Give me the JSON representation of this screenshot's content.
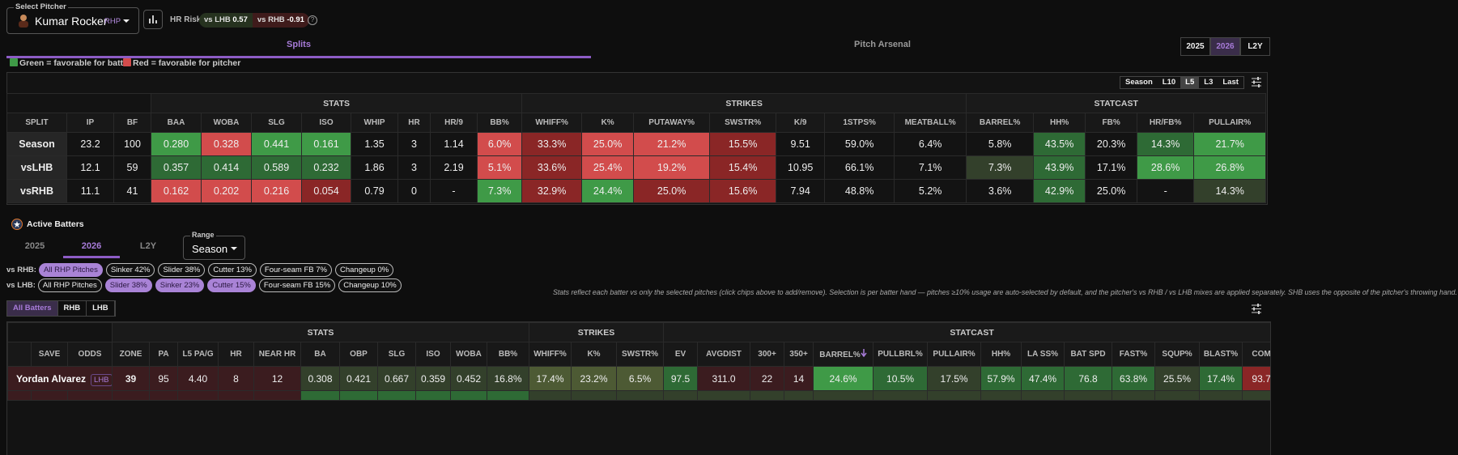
{
  "pitcher_select": {
    "label": "Select Pitcher",
    "name": "Kumar Rocker",
    "hand": "RHP"
  },
  "hr_risk": {
    "label": "HR Risk",
    "vs_lhb": {
      "label": "vs LHB",
      "value": "0.57"
    },
    "vs_rhb": {
      "label": "vs RHB",
      "value": "-0.91"
    },
    "help": "?"
  },
  "main_tabs": [
    {
      "text": "Splits",
      "selected": true
    },
    {
      "text": "Pitch Arsenal",
      "selected": false
    }
  ],
  "season_buttons": [
    {
      "text": "2025",
      "selected": false
    },
    {
      "text": "2026",
      "selected": true
    },
    {
      "text": "L2Y",
      "selected": false
    }
  ],
  "legend": [
    "Green = favorable for batter",
    "Red = favorable for pitcher"
  ],
  "range_buttons": [
    {
      "text": "Season",
      "selected": false
    },
    {
      "text": "L10",
      "selected": false
    },
    {
      "text": "L5",
      "selected": true
    },
    {
      "text": "L3",
      "selected": false
    },
    {
      "text": "Last",
      "selected": false
    }
  ],
  "splits_table": {
    "groups": [
      "STATS",
      "STRIKES",
      "STATCAST"
    ],
    "headers": [
      "SPLIT",
      "IP",
      "BF",
      "BAA",
      "WOBA",
      "SLG",
      "ISO",
      "WHIP",
      "HR",
      "HR/9",
      "BB%",
      "WHIFF%",
      "K%",
      "PUTAWAY%",
      "SWSTR%",
      "K/9",
      "1STPS%",
      "MEATBALL%",
      "BARREL%",
      "HH%",
      "FB%",
      "HR/FB%",
      "PULLAIR%"
    ],
    "rows": [
      [
        "Season",
        "23.2",
        "100",
        "0.280",
        "0.328",
        "0.441",
        "0.161",
        "1.35",
        "3",
        "1.14",
        "6.0%",
        "33.3%",
        "25.0%",
        "21.2%",
        "15.5%",
        "9.51",
        "59.0%",
        "6.4%",
        "5.8%",
        "43.5%",
        "20.3%",
        "14.3%",
        "21.7%"
      ],
      [
        "vsLHB",
        "12.1",
        "59",
        "0.357",
        "0.414",
        "0.589",
        "0.232",
        "1.86",
        "3",
        "2.19",
        "5.1%",
        "33.6%",
        "25.4%",
        "19.2%",
        "15.4%",
        "10.95",
        "66.1%",
        "7.1%",
        "7.3%",
        "43.9%",
        "17.1%",
        "28.6%",
        "26.8%"
      ],
      [
        "vsRHB",
        "11.1",
        "41",
        "0.162",
        "0.202",
        "0.216",
        "0.054",
        "0.79",
        "0",
        "-",
        "7.3%",
        "32.9%",
        "24.4%",
        "25.0%",
        "15.6%",
        "7.94",
        "48.8%",
        "5.2%",
        "3.6%",
        "42.9%",
        "25.0%",
        "-",
        "14.3%"
      ]
    ]
  },
  "active_batters": {
    "title": "Active Batters",
    "tabs": [
      {
        "text": "2025",
        "selected": false
      },
      {
        "text": "2026",
        "selected": true
      },
      {
        "text": "L2Y",
        "selected": false
      }
    ],
    "range": {
      "label": "Range",
      "value": "Season"
    },
    "rhb_chips": {
      "label": "vs RHB:",
      "items": [
        {
          "text": "All RHP Pitches",
          "selected": true
        },
        {
          "text": "Sinker 42%",
          "selected": false
        },
        {
          "text": "Slider 38%",
          "selected": false
        },
        {
          "text": "Cutter 13%",
          "selected": false
        },
        {
          "text": "Four-seam FB 7%",
          "selected": false
        },
        {
          "text": "Changeup 0%",
          "selected": false
        }
      ]
    },
    "lhb_chips": {
      "label": "vs LHB:",
      "items": [
        {
          "text": "All RHP Pitches",
          "selected": false
        },
        {
          "text": "Slider 38%",
          "selected": true
        },
        {
          "text": "Sinker 23%",
          "selected": true
        },
        {
          "text": "Cutter 15%",
          "selected": true
        },
        {
          "text": "Four-seam FB 15%",
          "selected": false
        },
        {
          "text": "Changeup 10%",
          "selected": false
        }
      ]
    },
    "note": "Stats reflect each batter vs only the selected pitches (click chips above to add/remove). Selection is per batter hand — pitches ≥10% usage are auto-selected by default, and the pitcher's vs RHB / vs LHB mixes are applied separately. SHB uses the opposite of the pitcher's throwing hand.",
    "filters": [
      {
        "text": "All Batters",
        "selected": true
      },
      {
        "text": "RHB",
        "selected": false
      },
      {
        "text": "LHB",
        "selected": false
      }
    ],
    "table": {
      "groups": [
        "STATS",
        "STRIKES",
        "STATCAST"
      ],
      "headers": [
        "SAVE",
        "ODDS",
        "ZONE",
        "PA",
        "L5 PA/G",
        "HR",
        "NEAR HR",
        "BA",
        "OBP",
        "SLG",
        "ISO",
        "WOBA",
        "BB%",
        "WHIFF%",
        "K%",
        "SWSTR%",
        "EV",
        "AVGDIST",
        "300+",
        "350+",
        "BARREL%",
        "PULLBRL%",
        "PULLAIR%",
        "HH%",
        "LA SS%",
        "BAT SPD",
        "FAST%",
        "SQUP%",
        "BLAST%",
        "COM"
      ],
      "rows": [
        {
          "name": "Yordan Alvarez",
          "hand": "LHB",
          "cells": [
            "39",
            "95",
            "4.40",
            "8",
            "12",
            "0.308",
            "0.421",
            "0.667",
            "0.359",
            "0.452",
            "16.8%",
            "17.4%",
            "23.2%",
            "6.5%",
            "97.5",
            "311.0",
            "22",
            "14",
            "24.6%",
            "10.5%",
            "17.5%",
            "57.9%",
            "47.4%",
            "76.8",
            "63.8%",
            "25.5%",
            "17.4%",
            "93.7"
          ]
        }
      ]
    }
  }
}
